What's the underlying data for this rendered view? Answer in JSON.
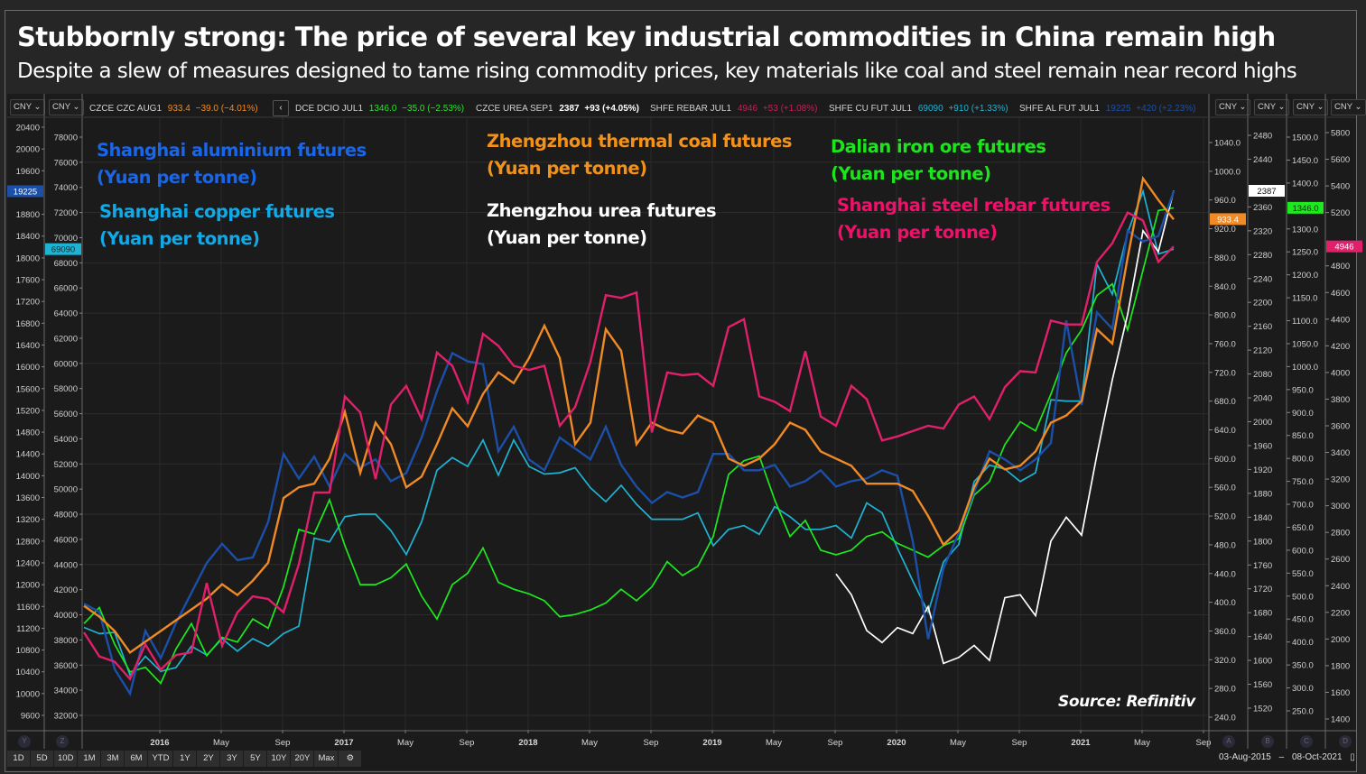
{
  "header": {
    "title": "Stubbornly strong: The price of several key industrial commodities in China remain high",
    "subtitle": "Despite a slew of measures designed to tame rising commodity prices, key materials like coal and steel remain near record highs"
  },
  "tickers": [
    {
      "name": "CZCE CZC AUG1",
      "price": "933.4",
      "change": "−39.0 (−4.01%)",
      "color": "#f08a24"
    },
    {
      "name": "DCE DCIO JUL1",
      "price": "1346.0",
      "change": "−35.0 (−2.53%)",
      "color": "#2ee02e"
    },
    {
      "name": "CZCE UREA SEP1",
      "price": "2387",
      "change": "+93 (+4.05%)",
      "color": "#ffffff"
    },
    {
      "name": "SHFE REBAR JUL1",
      "price": "4946",
      "change": "+53 (+1.08%)",
      "color": "#d0205a"
    },
    {
      "name": "SHFE CU FUT JUL1",
      "price": "69090",
      "change": "+910 (+1.33%)",
      "color": "#1eb3d3"
    },
    {
      "name": "SHFE AL FUT JUL1",
      "price": "19225",
      "change": "+420 (+2.23%)",
      "color": "#1c4fa8"
    }
  ],
  "controls": {
    "currency_label": "CNY",
    "nav_prev": "‹",
    "range_buttons": [
      "1D",
      "5D",
      "10D",
      "1M",
      "3M",
      "6M",
      "YTD",
      "1Y",
      "2Y",
      "3Y",
      "5Y",
      "10Y",
      "20Y",
      "Max"
    ],
    "settings_icon": "gear-icon",
    "date_start": "03-Aug-2015",
    "date_sep": "–",
    "date_end": "08-Oct-2021",
    "calendar_icon": "calendar-icon",
    "axis_buttons_left": [
      "Y",
      "Z"
    ],
    "axis_buttons_right": [
      "A",
      "B",
      "C",
      "D"
    ]
  },
  "annotations": {
    "aluminium": {
      "line1": "Shanghai aluminium futures",
      "line2": "(Yuan per tonne)",
      "color": "#1a66e8"
    },
    "copper": {
      "line1": "Shanghai copper futures",
      "line2": "(Yuan per tonne)",
      "color": "#12a9e6"
    },
    "coal": {
      "line1": "Zhengzhou thermal coal futures",
      "line2": "(Yuan per tonne)",
      "color": "#f39219"
    },
    "urea": {
      "line1": "Zhengzhou urea futures",
      "line2": "(Yuan per tonne)",
      "color": "#ffffff"
    },
    "iron": {
      "line1": "Dalian iron ore futures",
      "line2": "(Yuan per tonne)",
      "color": "#1de41d"
    },
    "rebar": {
      "line1": "Shanghai steel rebar futures",
      "line2": "(Yuan per tonne)",
      "color": "#f0106a"
    },
    "source": "Source: Refinitiv"
  },
  "chart_data": {
    "type": "line",
    "title": "Stubbornly strong: The price of several key industrial commodities in China remain high",
    "xlabel": "",
    "x_ticks": [
      "2016",
      "May",
      "Sep",
      "2017",
      "May",
      "Sep",
      "2018",
      "May",
      "Sep",
      "2019",
      "May",
      "Sep",
      "2020",
      "May",
      "Sep",
      "2021",
      "May",
      "Sep"
    ],
    "x_range": [
      "2015-08",
      "2021-10"
    ],
    "grid": true,
    "legend": "annotations in plot",
    "axes": [
      {
        "id": "Y",
        "series": "aluminium",
        "side": "left",
        "ylim": [
          9400,
          20600
        ],
        "ticks": [
          9600,
          10000,
          10400,
          10800,
          11200,
          11600,
          12000,
          12400,
          12800,
          13200,
          13600,
          14000,
          14400,
          14800,
          15200,
          15600,
          16000,
          16400,
          16800,
          17200,
          17600,
          18000,
          18400,
          18800,
          19600,
          20000,
          20400
        ],
        "last_label": "19225",
        "last_color": "#1c4fa8"
      },
      {
        "id": "Z",
        "series": "copper",
        "side": "left",
        "ylim": [
          31500,
          79000
        ],
        "ticks": [
          32000,
          34000,
          36000,
          38000,
          40000,
          42000,
          44000,
          46000,
          48000,
          50000,
          52000,
          54000,
          56000,
          58000,
          60000,
          62000,
          64000,
          66000,
          68000,
          70000,
          72000,
          74000,
          76000,
          78000
        ],
        "last_label": "69090",
        "last_color": "#1eb3d3"
      },
      {
        "id": "A",
        "series": "coal",
        "side": "right",
        "ylim": [
          220,
          1060
        ],
        "ticks": [
          "240.0",
          "280.0",
          "320.0",
          "360.0",
          "400.0",
          "440.0",
          "480.0",
          "520.0",
          "560.0",
          "600.0",
          "640.0",
          "680.0",
          "720.0",
          "760.0",
          "800.0",
          "840.0",
          "880.0",
          "920.0",
          "960.0",
          "1000.0",
          "1040.0"
        ],
        "last_label": "933.4",
        "last_color": "#f08a24"
      },
      {
        "id": "B",
        "series": "urea",
        "side": "right",
        "ylim": [
          1500,
          2500
        ],
        "ticks": [
          1520,
          1560,
          1600,
          1640,
          1680,
          1720,
          1760,
          1800,
          1840,
          1880,
          1920,
          1960,
          2000,
          2040,
          2080,
          2120,
          2160,
          2200,
          2240,
          2280,
          2320,
          2360,
          2440,
          2480
        ],
        "last_label": "2387",
        "last_color": "#ffffff"
      },
      {
        "id": "C",
        "series": "iron",
        "side": "right",
        "ylim": [
          230,
          1520
        ],
        "ticks": [
          "250.0",
          "300.0",
          "350.0",
          "400.0",
          "450.0",
          "500.0",
          "550.0",
          "600.0",
          "650.0",
          "700.0",
          "750.0",
          "800.0",
          "850.0",
          "900.0",
          "950.0",
          "1000.0",
          "1050.0",
          "1100.0",
          "1150.0",
          "1200.0",
          "1250.0",
          "1300.0",
          "1400.0",
          "1450.0",
          "1500.0"
        ],
        "last_label": "1346.0",
        "last_color": "#1ee81e"
      },
      {
        "id": "D",
        "series": "rebar",
        "side": "right",
        "ylim": [
          1350,
          5850
        ],
        "ticks": [
          1400,
          1600,
          1800,
          2000,
          2200,
          2400,
          2600,
          2800,
          3000,
          3200,
          3400,
          3600,
          3800,
          4000,
          4200,
          4400,
          4600,
          4800,
          5200,
          5400,
          5600,
          5800
        ],
        "last_label": "4946",
        "last_color": "#e0206a"
      }
    ],
    "x": [
      "2015-08",
      "2015-09",
      "2015-10",
      "2015-11",
      "2015-12",
      "2016-01",
      "2016-02",
      "2016-03",
      "2016-04",
      "2016-05",
      "2016-06",
      "2016-07",
      "2016-08",
      "2016-09",
      "2016-10",
      "2016-11",
      "2016-12",
      "2017-01",
      "2017-02",
      "2017-03",
      "2017-04",
      "2017-05",
      "2017-06",
      "2017-07",
      "2017-08",
      "2017-09",
      "2017-10",
      "2017-11",
      "2017-12",
      "2018-01",
      "2018-02",
      "2018-03",
      "2018-04",
      "2018-05",
      "2018-06",
      "2018-07",
      "2018-08",
      "2018-09",
      "2018-10",
      "2018-11",
      "2018-12",
      "2019-01",
      "2019-02",
      "2019-03",
      "2019-04",
      "2019-05",
      "2019-06",
      "2019-07",
      "2019-08",
      "2019-09",
      "2019-10",
      "2019-11",
      "2019-12",
      "2020-01",
      "2020-02",
      "2020-03",
      "2020-04",
      "2020-05",
      "2020-06",
      "2020-07",
      "2020-08",
      "2020-09",
      "2020-10",
      "2020-11",
      "2020-12",
      "2021-01",
      "2021-02",
      "2021-03",
      "2021-04",
      "2021-05",
      "2021-06",
      "2021-07"
    ],
    "series": [
      {
        "name": "Shanghai aluminium futures",
        "axis": "Y",
        "color": "#1c4fa8",
        "values": [
          11650,
          11500,
          10450,
          10000,
          11150,
          10650,
          11300,
          11850,
          12400,
          12750,
          12450,
          12500,
          13150,
          14400,
          13950,
          14350,
          13800,
          14400,
          14150,
          14300,
          13900,
          14050,
          14700,
          15550,
          16250,
          16100,
          16050,
          14450,
          14900,
          14300,
          14100,
          14700,
          14500,
          14300,
          14900,
          14200,
          13800,
          13500,
          13700,
          13600,
          13700,
          14400,
          14400,
          14100,
          14100,
          14200,
          13800,
          13900,
          14100,
          13800,
          13900,
          13950,
          14100,
          14000,
          12800,
          11000,
          12300,
          12950,
          13700,
          14450,
          14300,
          14100,
          14300,
          14600,
          16850,
          15300,
          17000,
          16700,
          18500,
          18300,
          18400,
          19225
        ]
      },
      {
        "name": "Shanghai copper futures",
        "axis": "Z",
        "color": "#1eb3d3",
        "values": [
          39000,
          38500,
          38600,
          35200,
          36700,
          35500,
          35800,
          37500,
          36800,
          38100,
          37100,
          38100,
          37500,
          38500,
          39100,
          46100,
          45800,
          47800,
          48000,
          48000,
          46700,
          44800,
          47400,
          51500,
          52500,
          51800,
          53900,
          51100,
          53900,
          51800,
          51200,
          51300,
          51700,
          50100,
          49000,
          50300,
          48800,
          47600,
          47600,
          47600,
          48100,
          45500,
          46800,
          47100,
          46400,
          48600,
          47800,
          46800,
          46800,
          47100,
          46100,
          48900,
          48100,
          45300,
          42700,
          40200,
          44200,
          45600,
          50600,
          51900,
          51600,
          50600,
          51300,
          57100,
          57000,
          57000,
          67900,
          65500,
          70400,
          73700,
          68700,
          69090
        ]
      },
      {
        "name": "Zhengzhou thermal coal futures",
        "axis": "A",
        "color": "#f08a24",
        "values": [
          395,
          380,
          360,
          330,
          345,
          360,
          375,
          390,
          405,
          425,
          410,
          430,
          455,
          545,
          560,
          565,
          600,
          665,
          580,
          650,
          620,
          560,
          575,
          620,
          670,
          645,
          690,
          720,
          705,
          740,
          785,
          740,
          620,
          650,
          780,
          750,
          620,
          650,
          640,
          635,
          660,
          650,
          600,
          590,
          600,
          620,
          650,
          640,
          610,
          600,
          590,
          565,
          565,
          565,
          555,
          520,
          480,
          500,
          560,
          600,
          585,
          590,
          610,
          650,
          660,
          680,
          780,
          760,
          880,
          990,
          960,
          933
        ]
      },
      {
        "name": "Zhengzhou urea futures",
        "axis": "B",
        "color": "#ffffff",
        "values": [
          null,
          null,
          null,
          null,
          null,
          null,
          null,
          null,
          null,
          null,
          null,
          null,
          null,
          null,
          null,
          null,
          null,
          null,
          null,
          null,
          null,
          null,
          null,
          null,
          null,
          null,
          null,
          null,
          null,
          null,
          null,
          null,
          null,
          null,
          null,
          null,
          null,
          null,
          null,
          null,
          null,
          null,
          null,
          null,
          null,
          null,
          null,
          null,
          null,
          1745,
          1710,
          1650,
          1630,
          1655,
          1645,
          1690,
          1595,
          1605,
          1625,
          1600,
          1705,
          1710,
          1675,
          1800,
          1840,
          1810,
          1945,
          2070,
          2180,
          2320,
          2285,
          2387
        ]
      },
      {
        "name": "Dalian iron ore futures",
        "axis": "C",
        "color": "#1ee81e",
        "values": [
          440,
          475,
          395,
          335,
          345,
          310,
          385,
          440,
          370,
          410,
          400,
          450,
          430,
          520,
          645,
          635,
          710,
          610,
          525,
          525,
          540,
          570,
          500,
          450,
          525,
          550,
          605,
          530,
          515,
          505,
          490,
          455,
          460,
          470,
          485,
          515,
          490,
          520,
          575,
          545,
          565,
          630,
          765,
          795,
          805,
          710,
          630,
          665,
          600,
          590,
          600,
          630,
          640,
          615,
          600,
          585,
          610,
          625,
          720,
          750,
          830,
          880,
          860,
          940,
          1030,
          1080,
          1155,
          1180,
          1080,
          1210,
          1340,
          1346
        ]
      },
      {
        "name": "Shanghai steel rebar futures",
        "axis": "D",
        "color": "#e0206a",
        "values": [
          2050,
          1870,
          1830,
          1700,
          1960,
          1770,
          1880,
          1900,
          2420,
          1950,
          2200,
          2320,
          2300,
          2200,
          2560,
          3100,
          3100,
          3820,
          3700,
          3200,
          3760,
          3900,
          3650,
          4150,
          4050,
          3780,
          4290,
          4200,
          4050,
          4020,
          4050,
          3600,
          3740,
          4080,
          4580,
          4560,
          4600,
          3550,
          4000,
          3980,
          3990,
          3900,
          4340,
          4400,
          3820,
          3780,
          3710,
          4160,
          3670,
          3600,
          3900,
          3800,
          3490,
          3520,
          3560,
          3600,
          3580,
          3760,
          3820,
          3650,
          3890,
          4010,
          4000,
          4390,
          4360,
          4360,
          4830,
          4970,
          5200,
          5140,
          4830,
          4946
        ]
      }
    ]
  }
}
